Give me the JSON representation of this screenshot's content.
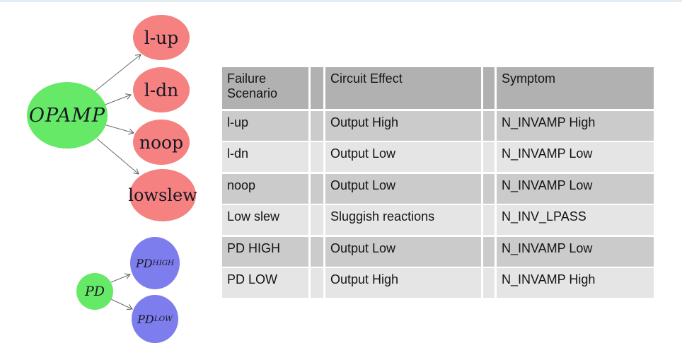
{
  "page": {
    "background": "#ffffff",
    "top_strip_color": "#e4edf4"
  },
  "diagram": {
    "arrow_color": "#5f5f5f",
    "text_color": "#181824",
    "node_colors": {
      "root_green": "#66e966",
      "failure_red": "#f58181",
      "pd_blue": "#7d7dee"
    },
    "nodes": [
      {
        "id": "opamp",
        "label": "OPAMP",
        "sub": "",
        "color": "#66e966",
        "italic": true
      },
      {
        "id": "l-up",
        "label": "l-up",
        "sub": "",
        "color": "#f58181",
        "italic": false
      },
      {
        "id": "l-dn",
        "label": "l-dn",
        "sub": "",
        "color": "#f58181",
        "italic": false
      },
      {
        "id": "noop",
        "label": "noop",
        "sub": "",
        "color": "#f58181",
        "italic": false
      },
      {
        "id": "lowslew",
        "label": "lowslew",
        "sub": "",
        "color": "#f58181",
        "italic": false
      },
      {
        "id": "pd",
        "label": "PD",
        "sub": "",
        "color": "#66e966",
        "italic": true
      },
      {
        "id": "pd-high",
        "label": "PD",
        "sub": "HIGH",
        "color": "#7d7dee",
        "italic": true
      },
      {
        "id": "pd-low",
        "label": "PD",
        "sub": "LOW",
        "color": "#7d7dee",
        "italic": true
      }
    ],
    "edges": [
      {
        "from": "opamp",
        "to": "l-up"
      },
      {
        "from": "opamp",
        "to": "l-dn"
      },
      {
        "from": "opamp",
        "to": "noop"
      },
      {
        "from": "opamp",
        "to": "lowslew"
      },
      {
        "from": "pd",
        "to": "pd-high"
      },
      {
        "from": "pd",
        "to": "pd-low"
      }
    ]
  },
  "table": {
    "headers": [
      "Failure Scenario",
      "Circuit Effect",
      "Symptom"
    ],
    "rows": [
      {
        "failure_scenario": "l-up",
        "circuit_effect": "Output High",
        "symptom": "N_INVAMP High"
      },
      {
        "failure_scenario": "l-dn",
        "circuit_effect": "Output Low",
        "symptom": "N_INVAMP Low"
      },
      {
        "failure_scenario": "noop",
        "circuit_effect": "Output Low",
        "symptom": "N_INVAMP Low"
      },
      {
        "failure_scenario": "Low slew",
        "circuit_effect": "Sluggish reactions",
        "symptom": "N_INV_LPASS"
      },
      {
        "failure_scenario": "PD HIGH",
        "circuit_effect": "Output Low",
        "symptom": "N_INVAMP Low"
      },
      {
        "failure_scenario": "PD LOW",
        "circuit_effect": "Output High",
        "symptom": "N_INVAMP High"
      }
    ],
    "colors": {
      "header_bg": "#b1b1b1",
      "row_dark_bg": "#cbcbcb",
      "row_light_bg": "#e5e5e5"
    }
  }
}
